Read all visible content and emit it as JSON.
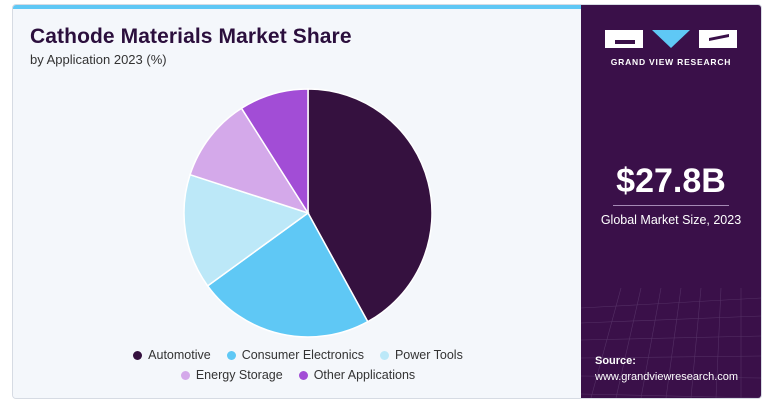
{
  "header": {
    "title": "Cathode Materials Market Share",
    "subtitle": "by Application 2023 (%)"
  },
  "chart_data": {
    "type": "pie",
    "title": "Cathode Materials Market Share",
    "subtitle": "by Application 2023 (%)",
    "categories": [
      "Automotive",
      "Consumer Electronics",
      "Power Tools",
      "Energy Storage",
      "Other Applications"
    ],
    "values": [
      42,
      23,
      15,
      11,
      9
    ],
    "colors": [
      "#35113f",
      "#5fc8f5",
      "#bce8f8",
      "#d4a9ea",
      "#a24dd6"
    ],
    "start_angle_deg": 0,
    "direction": "clockwise",
    "legend_position": "bottom"
  },
  "sidebar": {
    "brand": "GRAND VIEW RESEARCH",
    "market_size_value": "$27.8B",
    "market_size_label": "Global Market Size, 2023",
    "source_label": "Source:",
    "source_url": "www.grandviewresearch.com"
  },
  "theme": {
    "accent": "#5fc8f5",
    "panel": "#3a1049"
  }
}
